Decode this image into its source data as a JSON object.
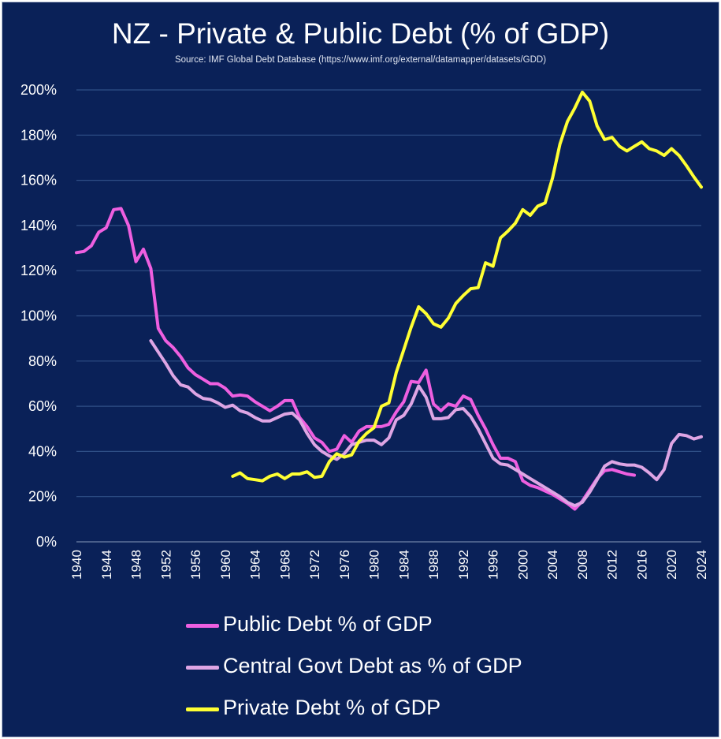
{
  "title": "NZ - Private & Public Debt (% of GDP)",
  "subtitle": "Source: IMF Global Debt Database (https://www.imf.org/external/datamapper/datasets/GDD)",
  "colors": {
    "background": "#0a2158",
    "public": "#ee5fe0",
    "central": "#dea5e4",
    "private": "#ffff33",
    "grid": "#2f4f86"
  },
  "chart_data": {
    "type": "line",
    "title": "NZ - Private & Public Debt (% of GDP)",
    "xlabel": "",
    "ylabel": "",
    "xlim": [
      1940,
      2024
    ],
    "ylim": [
      0,
      200
    ],
    "yticks": [
      0,
      20,
      40,
      60,
      80,
      100,
      120,
      140,
      160,
      180,
      200
    ],
    "ytick_labels": [
      "0%",
      "20%",
      "40%",
      "60%",
      "80%",
      "100%",
      "120%",
      "140%",
      "160%",
      "180%",
      "200%"
    ],
    "xticks": [
      1940,
      1944,
      1948,
      1952,
      1956,
      1960,
      1964,
      1968,
      1972,
      1976,
      1980,
      1984,
      1988,
      1992,
      1996,
      2000,
      2004,
      2008,
      2012,
      2016,
      2020,
      2024
    ],
    "xtick_labels": [
      "1940",
      "1944",
      "1948",
      "1952",
      "1956",
      "1960",
      "1964",
      "1968",
      "1972",
      "1976",
      "1980",
      "1984",
      "1988",
      "1992",
      "1996",
      "2000",
      "2004",
      "2008",
      "2012",
      "2016",
      "2020",
      "2024"
    ],
    "grid": "horizontal",
    "legend_position": "bottom",
    "series": [
      {
        "name": "Public Debt % of GDP",
        "color": "#ee5fe0",
        "x": [
          1940,
          1941,
          1942,
          1943,
          1944,
          1945,
          1946,
          1947,
          1948,
          1949,
          1950,
          1951,
          1952,
          1953,
          1954,
          1955,
          1956,
          1957,
          1958,
          1959,
          1960,
          1961,
          1962,
          1963,
          1964,
          1965,
          1966,
          1967,
          1968,
          1969,
          1970,
          1971,
          1972,
          1973,
          1974,
          1975,
          1976,
          1977,
          1978,
          1979,
          1980,
          1981,
          1982,
          1983,
          1984,
          1985,
          1986,
          1987,
          1988,
          1989,
          1990,
          1991,
          1992,
          1993,
          1994,
          1995,
          1996,
          1997,
          1998,
          1999,
          2000,
          2001,
          2002,
          2003,
          2004,
          2005,
          2006,
          2007,
          2008,
          2009,
          2010,
          2011,
          2012,
          2013,
          2014,
          2015
        ],
        "y": [
          128,
          128.5,
          131,
          137,
          139,
          147,
          147.5,
          140,
          124,
          129.5,
          121,
          94.5,
          89,
          86,
          82,
          77,
          74,
          72,
          70,
          70,
          68,
          64.5,
          65,
          64.5,
          62,
          60,
          58,
          60,
          62.5,
          62.5,
          55,
          51,
          46,
          44,
          40,
          41,
          47,
          44,
          49,
          51,
          51,
          51,
          52,
          57.5,
          62,
          71,
          70.5,
          76,
          61,
          58,
          61,
          60,
          64.5,
          63,
          56,
          50,
          43,
          37,
          37,
          35.5,
          27,
          25,
          24,
          22.5,
          21,
          19,
          17,
          14.5,
          18,
          23,
          28,
          31.5,
          32,
          31,
          30,
          29.5
        ]
      },
      {
        "name": "Central Govt Debt as % of GDP",
        "color": "#dea5e4",
        "x": [
          1950,
          1951,
          1952,
          1953,
          1954,
          1955,
          1956,
          1957,
          1958,
          1959,
          1960,
          1961,
          1962,
          1963,
          1964,
          1965,
          1966,
          1967,
          1968,
          1969,
          1970,
          1971,
          1972,
          1973,
          1974,
          1975,
          1976,
          1977,
          1978,
          1979,
          1980,
          1981,
          1982,
          1983,
          1984,
          1985,
          1986,
          1987,
          1988,
          1989,
          1990,
          1991,
          1992,
          1993,
          1994,
          1995,
          1996,
          1997,
          1998,
          1999,
          2000,
          2001,
          2002,
          2003,
          2004,
          2005,
          2006,
          2007,
          2008,
          2009,
          2010,
          2011,
          2012,
          2013,
          2014,
          2015,
          2016,
          2017,
          2018,
          2019,
          2020,
          2021,
          2022,
          2023,
          2024
        ],
        "y": [
          89,
          84,
          79,
          73.5,
          69.5,
          68.5,
          65.5,
          63.5,
          63,
          61.5,
          59.5,
          60.5,
          58,
          57,
          55,
          53.5,
          53.5,
          55,
          56.5,
          57,
          54,
          48,
          43,
          40,
          38,
          36.5,
          39,
          43,
          44,
          45,
          45,
          43,
          46,
          54,
          56,
          61,
          69,
          64,
          54.5,
          54.5,
          55,
          58.5,
          59,
          55.5,
          50,
          43.5,
          37,
          34.5,
          34,
          32,
          30,
          28,
          26,
          24,
          22,
          20,
          17.5,
          16,
          17.5,
          22,
          27.5,
          33.5,
          35.5,
          34.5,
          34,
          34,
          33,
          30.5,
          27.5,
          32,
          43.5,
          47.5,
          47,
          45.5,
          46.5
        ]
      },
      {
        "name": "Private Debt % of GDP",
        "color": "#ffff33",
        "x": [
          1961,
          1962,
          1963,
          1964,
          1965,
          1966,
          1967,
          1968,
          1969,
          1970,
          1971,
          1972,
          1973,
          1974,
          1975,
          1976,
          1977,
          1978,
          1979,
          1980,
          1981,
          1982,
          1983,
          1984,
          1985,
          1986,
          1987,
          1988,
          1989,
          1990,
          1991,
          1992,
          1993,
          1994,
          1995,
          1996,
          1997,
          1998,
          1999,
          2000,
          2001,
          2002,
          2003,
          2004,
          2005,
          2006,
          2007,
          2008,
          2009,
          2010,
          2011,
          2012,
          2013,
          2014,
          2015,
          2016,
          2017,
          2018,
          2019,
          2020,
          2021,
          2022,
          2023,
          2024
        ],
        "y": [
          29,
          30.5,
          28,
          27.5,
          27,
          29,
          30,
          28,
          30,
          30,
          31,
          28.5,
          29,
          35.5,
          39,
          37.5,
          38.5,
          44.5,
          48,
          50.5,
          60,
          61.5,
          75,
          85,
          95,
          104,
          101,
          96.5,
          95,
          99,
          105.5,
          109,
          112,
          112.5,
          123.5,
          122,
          134.5,
          137.5,
          141,
          147,
          144.5,
          148.5,
          150,
          161,
          176,
          186,
          192,
          199,
          195,
          184,
          178,
          179,
          175,
          173,
          175,
          177,
          174,
          173,
          171,
          174,
          171,
          166.5,
          161.5,
          157
        ]
      }
    ]
  }
}
